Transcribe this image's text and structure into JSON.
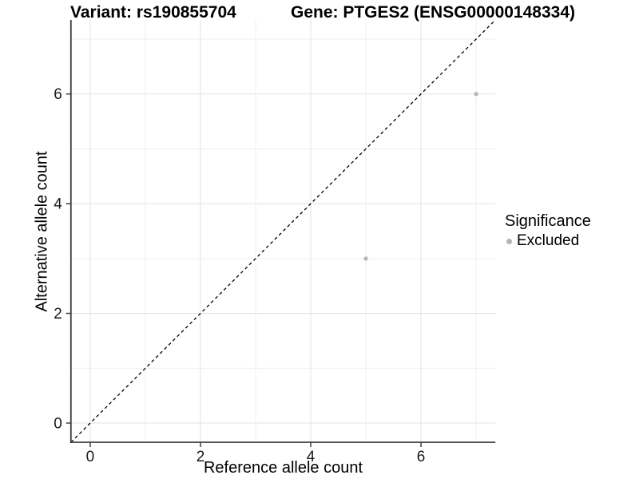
{
  "titles": {
    "left": "Variant: rs190855704",
    "right": "Gene: PTGES2 (ENSG00000148334)"
  },
  "chart_data": {
    "type": "scatter",
    "xlabel": "Reference allele count",
    "ylabel": "Alternative allele count",
    "xlim": [
      -0.35,
      7.35
    ],
    "ylim": [
      -0.35,
      7.35
    ],
    "x_ticks": [
      0,
      2,
      4,
      6
    ],
    "y_ticks": [
      0,
      2,
      4,
      6
    ],
    "x_minor_ticks": [
      1,
      3,
      5,
      7
    ],
    "y_minor_ticks": [
      1,
      3,
      5,
      7
    ],
    "grid": true,
    "identity_line": {
      "style": "dashed",
      "color": "#000000"
    },
    "series": [
      {
        "name": "Excluded",
        "color": "#b5b5b5",
        "points": [
          [
            5,
            3
          ],
          [
            7,
            6
          ]
        ]
      }
    ],
    "legend": {
      "title": "Significance",
      "position": "right",
      "entries": [
        {
          "label": "Excluded",
          "color": "#b5b5b5"
        }
      ]
    }
  },
  "colors": {
    "background": "#ffffff",
    "major_grid": "#e4e4e4",
    "minor_grid": "#efefef",
    "axis_line": "#3d3d3d",
    "tick_label": "#1a1a1a",
    "point": "#b5b5b5",
    "identity_line": "#000000"
  }
}
